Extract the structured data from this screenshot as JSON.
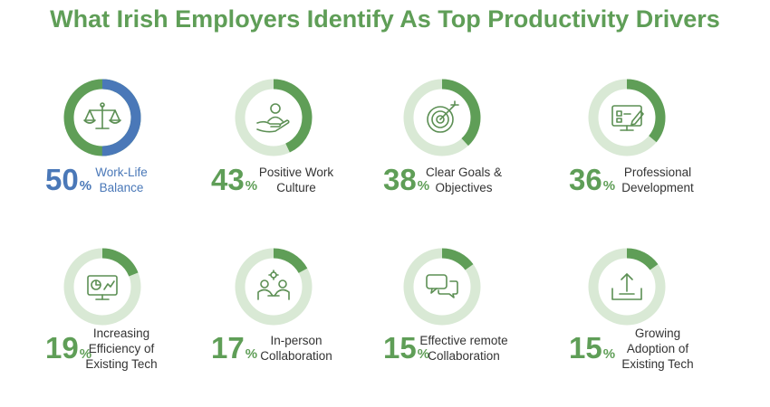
{
  "title": "What Irish Employers Identify As Top Productivity Drivers",
  "colors": {
    "title": "#5f9e57",
    "green": "#5f9e57",
    "blue": "#4a78b8",
    "track": "#d9e9d5",
    "icon": "#5c8f54"
  },
  "chart_data": {
    "type": "pie",
    "title": "What Irish Employers Identify As Top Productivity Drivers",
    "unit": "%",
    "items": [
      {
        "value": 50,
        "label_lines": [
          "Work-Life",
          "Balance"
        ],
        "icon": "scales-icon",
        "highlight": true
      },
      {
        "value": 43,
        "label_lines": [
          "Positive Work",
          "Culture"
        ],
        "icon": "hand-person-icon",
        "highlight": false
      },
      {
        "value": 38,
        "label_lines": [
          "Clear Goals &",
          "Objectives"
        ],
        "icon": "target-icon",
        "highlight": false
      },
      {
        "value": 36,
        "label_lines": [
          "Professional",
          "Development"
        ],
        "icon": "monitor-edit-icon",
        "highlight": false
      },
      {
        "value": 19,
        "label_lines": [
          "Increasing",
          "Efficiency of",
          "Existing Tech"
        ],
        "icon": "monitor-chart-icon",
        "highlight": false
      },
      {
        "value": 17,
        "label_lines": [
          "In-person",
          "Collaboration"
        ],
        "icon": "people-meeting-icon",
        "highlight": false
      },
      {
        "value": 15,
        "label_lines": [
          "Effective remote",
          "Collaboration"
        ],
        "icon": "chat-bubbles-icon",
        "highlight": false
      },
      {
        "value": 15,
        "label_lines": [
          "Growing",
          "Adoption of",
          "Existing Tech"
        ],
        "icon": "upload-tray-icon",
        "highlight": false
      }
    ]
  }
}
